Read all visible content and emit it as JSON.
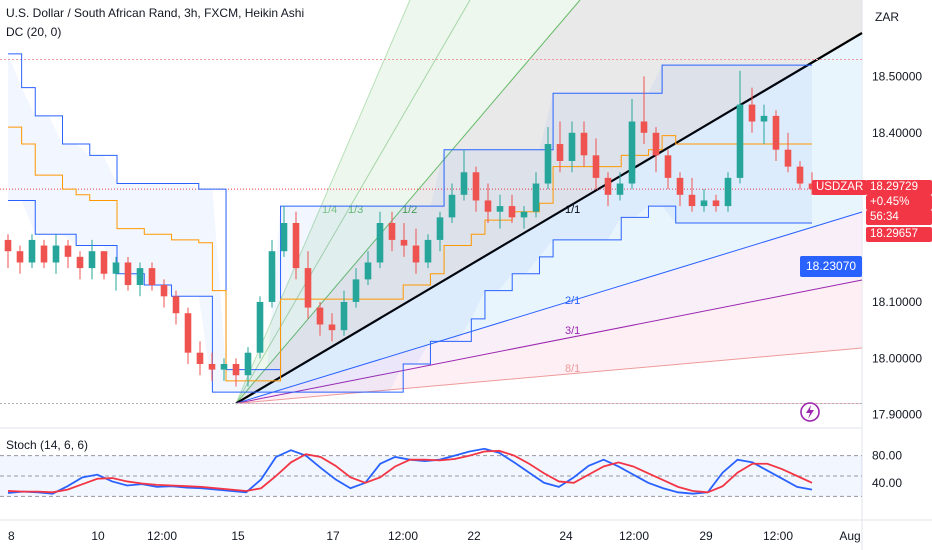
{
  "header": {
    "title": "U.S. Dollar / South African Rand, 3h, FXCM, Heikin Ashi",
    "indicator": "DC (20, 0)",
    "currency_button": "ZAR"
  },
  "oscillator": {
    "label": "Stoch (14, 6, 6)",
    "upper_label": "80.00",
    "lower_label": "40.00"
  },
  "price_tags": {
    "symbol": "USDZAR",
    "price": "18.29729",
    "change": "+0.45%",
    "countdown": "56:34",
    "second_price": "18.29657",
    "fan_price": "18.23070"
  },
  "colors": {
    "bull": "#26a69a",
    "bear": "#ef5350",
    "channel": "#2962ff",
    "basis": "#ff9800",
    "stoch_k": "#2962ff",
    "stoch_d": "#f23645"
  },
  "chart_data": [
    {
      "type": "candlestick",
      "subtype": "Heikin Ashi",
      "symbol": "USD/ZAR",
      "x_ticks": [
        "8",
        "10",
        "12:00",
        "15",
        "17",
        "12:00",
        "22",
        "24",
        "12:00",
        "29",
        "12:00",
        "Aug"
      ],
      "y_ticks": [
        "18.50000",
        "18.40000",
        "18.10000",
        "18.00000",
        "17.90000"
      ],
      "ylim": [
        17.88,
        18.6
      ],
      "grid": false,
      "gann_fan_labels": [
        "1/4",
        "1/3",
        "1/2",
        "1/1",
        "2/1",
        "3/1",
        "8/1"
      ],
      "donchian_upper": [
        18.54,
        18.48,
        18.43,
        18.43,
        18.38,
        18.38,
        18.36,
        18.36,
        18.31,
        18.31,
        18.31,
        18.31,
        18.31,
        18.31,
        18.3,
        18.3,
        17.98,
        17.98,
        17.98,
        17.98,
        18.27,
        18.27,
        18.27,
        18.27,
        18.27,
        18.27,
        18.27,
        18.27,
        18.27,
        18.27,
        18.27,
        18.27,
        18.37,
        18.37,
        18.37,
        18.37,
        18.37,
        18.37,
        18.37,
        18.37,
        18.47,
        18.47,
        18.47,
        18.47,
        18.47,
        18.47,
        18.47,
        18.47,
        18.52,
        18.52,
        18.52,
        18.52,
        18.52,
        18.52,
        18.52,
        18.52,
        18.52,
        18.52,
        18.52,
        18.52
      ],
      "donchian_lower": [
        18.28,
        18.28,
        18.22,
        18.22,
        18.22,
        18.2,
        18.2,
        18.2,
        18.15,
        18.15,
        18.13,
        18.13,
        18.11,
        18.11,
        18.11,
        17.94,
        17.94,
        17.94,
        17.94,
        17.94,
        17.94,
        17.94,
        17.94,
        17.94,
        17.94,
        17.94,
        17.94,
        17.94,
        17.94,
        17.99,
        17.99,
        18.03,
        18.03,
        18.03,
        18.07,
        18.12,
        18.12,
        18.15,
        18.15,
        18.18,
        18.21,
        18.21,
        18.21,
        18.21,
        18.21,
        18.25,
        18.25,
        18.27,
        18.27,
        18.24,
        18.24,
        18.24,
        18.24,
        18.24,
        18.24,
        18.24,
        18.24,
        18.24,
        18.24,
        18.24
      ],
      "candles": [
        [
          18.21,
          18.22,
          18.16,
          18.19
        ],
        [
          18.19,
          18.2,
          18.15,
          18.17
        ],
        [
          18.17,
          18.22,
          18.16,
          18.21
        ],
        [
          18.2,
          18.21,
          18.16,
          18.17
        ],
        [
          18.17,
          18.22,
          18.15,
          18.2
        ],
        [
          18.2,
          18.21,
          18.16,
          18.18
        ],
        [
          18.18,
          18.19,
          18.14,
          18.16
        ],
        [
          18.16,
          18.21,
          18.14,
          18.19
        ],
        [
          18.19,
          18.19,
          18.14,
          18.15
        ],
        [
          18.15,
          18.18,
          18.12,
          18.17
        ],
        [
          18.17,
          18.18,
          18.12,
          18.13
        ],
        [
          18.13,
          18.17,
          18.11,
          18.16
        ],
        [
          18.16,
          18.17,
          18.12,
          18.13
        ],
        [
          18.13,
          18.14,
          18.09,
          18.11
        ],
        [
          18.11,
          18.12,
          18.06,
          18.08
        ],
        [
          18.08,
          18.09,
          17.99,
          18.01
        ],
        [
          18.01,
          18.03,
          17.97,
          17.99
        ],
        [
          17.99,
          18.01,
          17.96,
          17.98
        ],
        [
          17.98,
          18.0,
          17.96,
          17.99
        ],
        [
          17.99,
          18.0,
          17.95,
          17.97
        ],
        [
          17.97,
          18.02,
          17.95,
          18.01
        ],
        [
          18.01,
          18.11,
          18.0,
          18.1
        ],
        [
          18.1,
          18.21,
          18.09,
          18.19
        ],
        [
          18.19,
          18.27,
          18.18,
          18.24
        ],
        [
          18.24,
          18.26,
          18.14,
          18.16
        ],
        [
          18.16,
          18.19,
          18.07,
          18.09
        ],
        [
          18.09,
          18.1,
          18.04,
          18.06
        ],
        [
          18.06,
          18.08,
          18.03,
          18.05
        ],
        [
          18.05,
          18.12,
          18.04,
          18.1
        ],
        [
          18.1,
          18.16,
          18.09,
          18.14
        ],
        [
          18.14,
          18.19,
          18.13,
          18.17
        ],
        [
          18.17,
          18.26,
          18.16,
          18.24
        ],
        [
          18.24,
          18.26,
          18.19,
          18.21
        ],
        [
          18.21,
          18.24,
          18.18,
          18.2
        ],
        [
          18.2,
          18.23,
          18.15,
          18.17
        ],
        [
          18.17,
          18.22,
          18.16,
          18.21
        ],
        [
          18.21,
          18.26,
          18.19,
          18.25
        ],
        [
          18.25,
          18.31,
          18.24,
          18.29
        ],
        [
          18.29,
          18.37,
          18.28,
          18.33
        ],
        [
          18.33,
          18.34,
          18.26,
          18.28
        ],
        [
          18.28,
          18.31,
          18.24,
          18.26
        ],
        [
          18.26,
          18.29,
          18.23,
          18.27
        ],
        [
          18.27,
          18.29,
          18.24,
          18.25
        ],
        [
          18.25,
          18.27,
          18.23,
          18.26
        ],
        [
          18.26,
          18.33,
          18.25,
          18.31
        ],
        [
          18.31,
          18.41,
          18.3,
          18.38
        ],
        [
          18.38,
          18.42,
          18.33,
          18.35
        ],
        [
          18.35,
          18.42,
          18.33,
          18.4
        ],
        [
          18.4,
          18.42,
          18.34,
          18.36
        ],
        [
          18.36,
          18.39,
          18.3,
          18.32
        ],
        [
          18.32,
          18.33,
          18.27,
          18.29
        ],
        [
          18.29,
          18.33,
          18.28,
          18.31
        ],
        [
          18.31,
          18.46,
          18.3,
          18.42
        ],
        [
          18.42,
          18.5,
          18.38,
          18.4
        ],
        [
          18.4,
          18.41,
          18.33,
          18.36
        ],
        [
          18.36,
          18.37,
          18.3,
          18.32
        ],
        [
          18.32,
          18.33,
          18.27,
          18.29
        ],
        [
          18.29,
          18.32,
          18.26,
          18.27
        ],
        [
          18.27,
          18.3,
          18.26,
          18.28
        ],
        [
          18.28,
          18.29,
          18.26,
          18.27
        ],
        [
          18.27,
          18.33,
          18.26,
          18.32
        ],
        [
          18.32,
          18.51,
          18.31,
          18.45
        ],
        [
          18.45,
          18.48,
          18.4,
          18.42
        ],
        [
          18.42,
          18.45,
          18.38,
          18.43
        ],
        [
          18.43,
          18.44,
          18.35,
          18.37
        ],
        [
          18.37,
          18.4,
          18.33,
          18.34
        ],
        [
          18.34,
          18.35,
          18.3,
          18.31
        ],
        [
          18.31,
          18.33,
          18.29,
          18.3
        ]
      ],
      "stoch_k": [
        25,
        27,
        26,
        24,
        35,
        48,
        52,
        42,
        36,
        38,
        34,
        35,
        33,
        32,
        30,
        28,
        26,
        45,
        78,
        88,
        80,
        62,
        45,
        32,
        40,
        68,
        78,
        74,
        72,
        74,
        80,
        86,
        90,
        84,
        70,
        55,
        40,
        34,
        48,
        65,
        74,
        64,
        52,
        40,
        32,
        26,
        24,
        26,
        55,
        74,
        70,
        58,
        46,
        34,
        30
      ],
      "stoch_d": [
        28,
        27,
        27,
        26,
        30,
        38,
        46,
        47,
        42,
        39,
        37,
        36,
        35,
        34,
        32,
        30,
        28,
        32,
        50,
        70,
        82,
        78,
        65,
        48,
        40,
        48,
        64,
        74,
        74,
        73,
        75,
        80,
        86,
        87,
        80,
        68,
        54,
        42,
        40,
        52,
        64,
        70,
        64,
        54,
        44,
        34,
        28,
        26,
        35,
        55,
        68,
        68,
        60,
        50,
        40
      ]
    }
  ]
}
